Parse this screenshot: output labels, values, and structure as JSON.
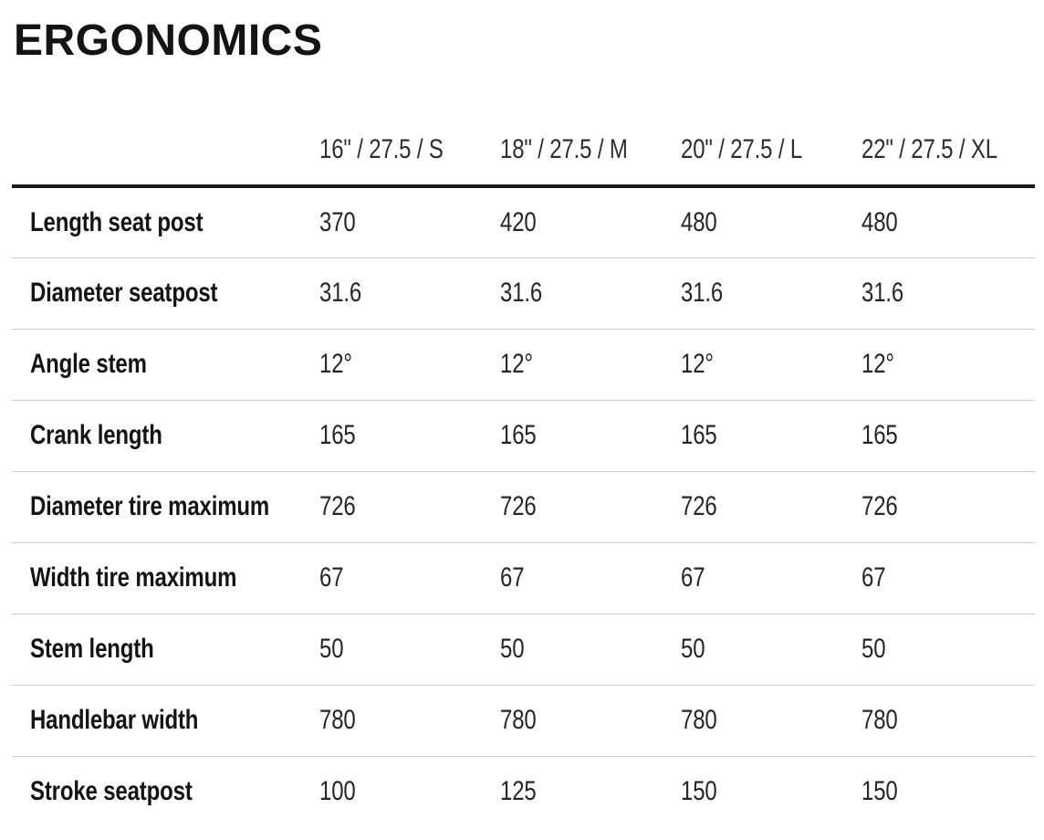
{
  "page": {
    "title": "ERGONOMICS"
  },
  "colors": {
    "background": "#ffffff",
    "heading_text": "#141414",
    "body_text": "#262626",
    "header_rule": "#1a1a1a",
    "row_divider": "#c8ccca"
  },
  "table": {
    "columns": [
      "16\" / 27.5 / S",
      "18\" / 27.5 / M",
      "20\" / 27.5 / L",
      "22\" / 27.5 / XL"
    ],
    "rows": [
      {
        "label": "Length seat post",
        "values": [
          "370",
          "420",
          "480",
          "480"
        ]
      },
      {
        "label": "Diameter seatpost",
        "values": [
          "31.6",
          "31.6",
          "31.6",
          "31.6"
        ]
      },
      {
        "label": "Angle stem",
        "values": [
          "12°",
          "12°",
          "12°",
          "12°"
        ]
      },
      {
        "label": "Crank length",
        "values": [
          "165",
          "165",
          "165",
          "165"
        ]
      },
      {
        "label": "Diameter tire maximum",
        "values": [
          "726",
          "726",
          "726",
          "726"
        ]
      },
      {
        "label": "Width tire maximum",
        "values": [
          "67",
          "67",
          "67",
          "67"
        ]
      },
      {
        "label": "Stem length",
        "values": [
          "50",
          "50",
          "50",
          "50"
        ]
      },
      {
        "label": "Handlebar width",
        "values": [
          "780",
          "780",
          "780",
          "780"
        ]
      },
      {
        "label": "Stroke seatpost",
        "values": [
          "100",
          "125",
          "150",
          "150"
        ]
      }
    ]
  },
  "chart_data": {
    "type": "table",
    "title": "ERGONOMICS",
    "columns": [
      "16\" / 27.5 / S",
      "18\" / 27.5 / M",
      "20\" / 27.5 / L",
      "22\" / 27.5 / XL"
    ],
    "rows": [
      [
        "Length seat post",
        "370",
        "420",
        "480",
        "480"
      ],
      [
        "Diameter seatpost",
        "31.6",
        "31.6",
        "31.6",
        "31.6"
      ],
      [
        "Angle stem",
        "12°",
        "12°",
        "12°",
        "12°"
      ],
      [
        "Crank length",
        "165",
        "165",
        "165",
        "165"
      ],
      [
        "Diameter tire maximum",
        "726",
        "726",
        "726",
        "726"
      ],
      [
        "Width tire maximum",
        "67",
        "67",
        "67",
        "67"
      ],
      [
        "Stem length",
        "50",
        "50",
        "50",
        "50"
      ],
      [
        "Handlebar width",
        "780",
        "780",
        "780",
        "780"
      ],
      [
        "Stroke seatpost",
        "100",
        "125",
        "150",
        "150"
      ]
    ]
  }
}
